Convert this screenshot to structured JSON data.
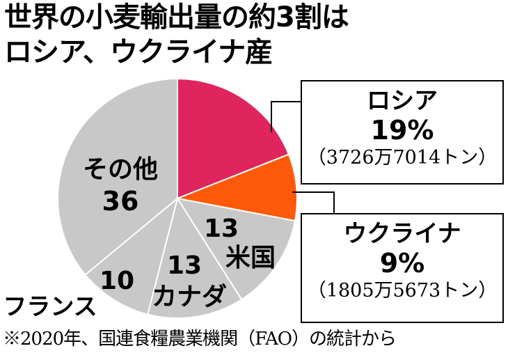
{
  "title_line1": "世界の小麦輸出量の約3割は",
  "title_line2": "ロシア、ウクライナ産",
  "chart_data": {
    "type": "pie",
    "unit": "%",
    "slices": [
      {
        "label": "ロシア",
        "value": 19,
        "color": "#e0245e"
      },
      {
        "label": "ウクライナ",
        "value": 9,
        "color": "#ff5a0a"
      },
      {
        "label": "米国",
        "value": 13,
        "color": "#c8c8c8"
      },
      {
        "label": "カナダ",
        "value": 13,
        "color": "#c8c8c8"
      },
      {
        "label": "フランス",
        "value": 10,
        "color": "#c8c8c8"
      },
      {
        "label": "その他",
        "value": 36,
        "color": "#c8c8c8"
      }
    ],
    "callouts": {
      "russia": {
        "name": "ロシア",
        "pct": "19%",
        "amount": "（3726万7014トン）"
      },
      "ukraine": {
        "name": "ウクライナ",
        "pct": "9%",
        "amount": "（1805万5673トン）"
      }
    }
  },
  "footnote": "※2020年、国連食糧農業機関（FAO）の統計から"
}
